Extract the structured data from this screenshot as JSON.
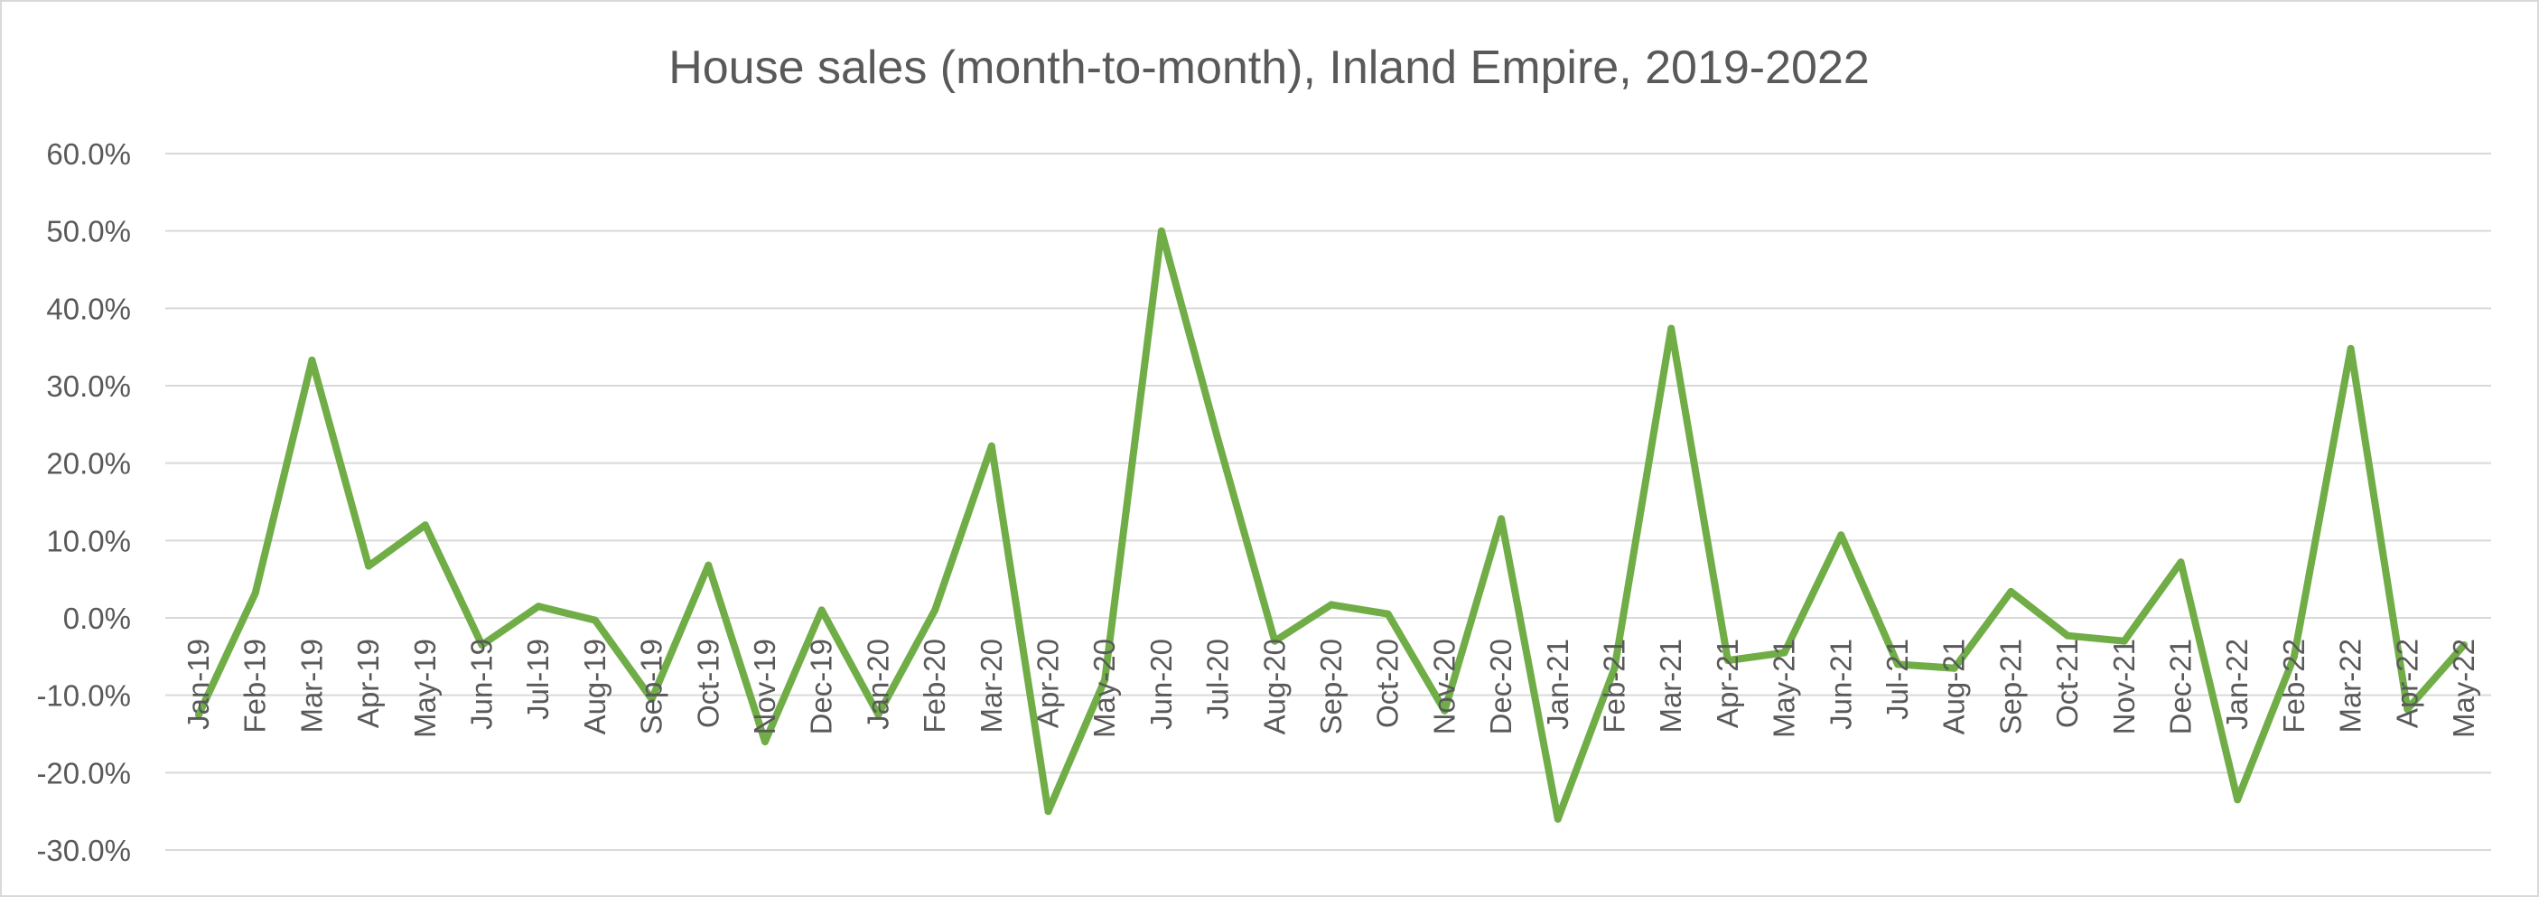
{
  "chart_data": {
    "type": "line",
    "title": "House sales (month-to-month), Inland Empire, 2019-2022",
    "xlabel": "",
    "ylabel": "",
    "ylim": [
      -30,
      60
    ],
    "ytick_step": 10,
    "ytick_labels": [
      "60.0%",
      "50.0%",
      "40.0%",
      "30.0%",
      "20.0%",
      "10.0%",
      "0.0%",
      "-10.0%",
      "-20.0%",
      "-30.0%"
    ],
    "grid": true,
    "legend": "none",
    "line_color": "#70ad47",
    "categories": [
      "Jan-19",
      "Feb-19",
      "Mar-19",
      "Apr-19",
      "May-19",
      "Jun-19",
      "Jul-19",
      "Aug-19",
      "Sep-19",
      "Oct-19",
      "Nov-19",
      "Dec-19",
      "Jan-20",
      "Feb-20",
      "Mar-20",
      "Apr-20",
      "May-20",
      "Jun-20",
      "Jul-20",
      "Aug-20",
      "Sep-20",
      "Oct-20",
      "Nov-20",
      "Dec-20",
      "Jan-21",
      "Feb-21",
      "Mar-21",
      "Apr-21",
      "May-21",
      "Jun-21",
      "Jul-21",
      "Aug-21",
      "Sep-21",
      "Oct-21",
      "Nov-21",
      "Dec-21",
      "Jan-22",
      "Feb-22",
      "Mar-22",
      "Apr-22",
      "May-22"
    ],
    "series": [
      {
        "values": [
          -12.5,
          3.2,
          33.3,
          6.7,
          12.0,
          -3.5,
          1.5,
          -0.3,
          -10.5,
          6.8,
          -16.0,
          1.0,
          -12.5,
          1.0,
          22.2,
          -25.0,
          -8.0,
          50.0,
          23.0,
          -3.0,
          1.7,
          0.5,
          -12.0,
          12.8,
          -26.0,
          -6.5,
          37.4,
          -5.5,
          -4.5,
          10.7,
          -6.0,
          -6.5,
          3.4,
          -2.3,
          -3.0,
          7.2,
          -23.5,
          -5.0,
          34.8,
          -11.8,
          -3.5
        ]
      }
    ]
  }
}
